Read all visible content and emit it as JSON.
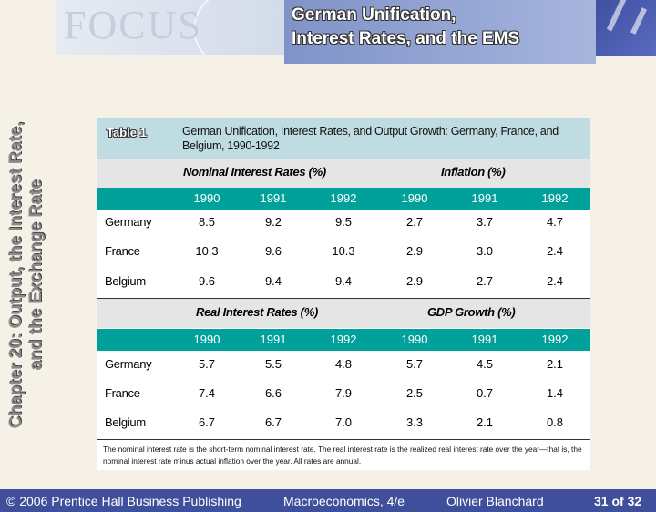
{
  "header": {
    "logo_text": "FOCUS",
    "title_line1": "German Unification,",
    "title_line2": "Interest Rates, and the EMS"
  },
  "side_title": {
    "line1": "Chapter 20: Output, the Interest Rate,",
    "line2": "and the Exchange Rate"
  },
  "table": {
    "label": "Table 1",
    "caption": "German Unification, Interest Rates, and Output Growth: Germany, France, and Belgium, 1990-1992",
    "sections": [
      {
        "left_title": "Nominal Interest Rates (%)",
        "right_title": "Inflation (%)",
        "years": [
          "1990",
          "1991",
          "1992",
          "1990",
          "1991",
          "1992"
        ],
        "rows": [
          {
            "country": "Germany",
            "values": [
              "8.5",
              "9.2",
              "9.5",
              "2.7",
              "3.7",
              "4.7"
            ]
          },
          {
            "country": "France",
            "values": [
              "10.3",
              "9.6",
              "10.3",
              "2.9",
              "3.0",
              "2.4"
            ]
          },
          {
            "country": "Belgium",
            "values": [
              "9.6",
              "9.4",
              "9.4",
              "2.9",
              "2.7",
              "2.4"
            ]
          }
        ]
      },
      {
        "left_title": "Real Interest Rates (%)",
        "right_title": "GDP Growth (%)",
        "years": [
          "1990",
          "1991",
          "1992",
          "1990",
          "1991",
          "1992"
        ],
        "rows": [
          {
            "country": "Germany",
            "values": [
              "5.7",
              "5.5",
              "4.8",
              "5.7",
              "4.5",
              "2.1"
            ]
          },
          {
            "country": "France",
            "values": [
              "7.4",
              "6.6",
              "7.9",
              "2.5",
              "0.7",
              "1.4"
            ]
          },
          {
            "country": "Belgium",
            "values": [
              "6.7",
              "6.7",
              "7.0",
              "3.3",
              "2.1",
              "0.8"
            ]
          }
        ]
      }
    ],
    "note": "The nominal interest rate is the short-term nominal interest rate. The real interest rate is the realized real interest rate over the year—that is, the nominal interest rate minus actual inflation over the year. All rates are annual."
  },
  "footer": {
    "copyright": "© 2006 Prentice Hall Business Publishing",
    "book": "Macroeconomics, 4/e",
    "author": "Olivier Blanchard",
    "page": "31 of 32"
  },
  "colors": {
    "background": "#F6F1E6",
    "footer": "#404F9C",
    "title_panel": "#8B9DD0",
    "table_header": "#BFDCE3",
    "year_bar": "#00A19A",
    "section_bar": "#E5E5E5"
  }
}
